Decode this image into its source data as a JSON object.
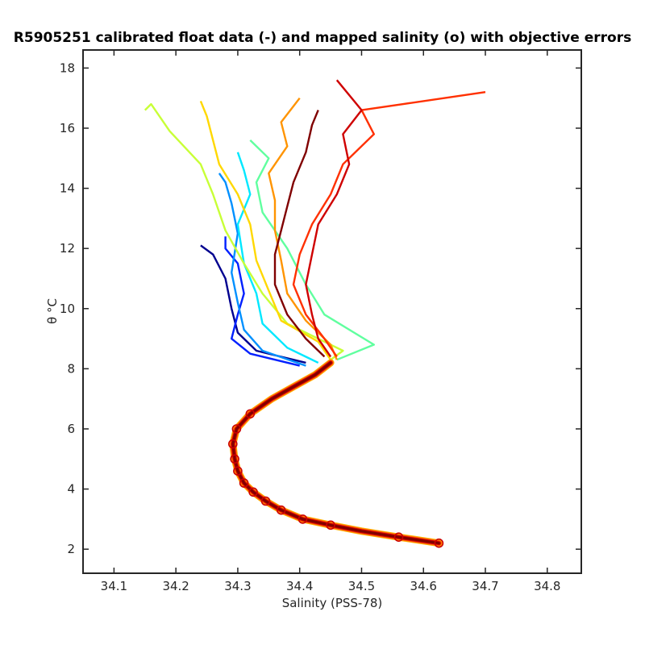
{
  "chart_data": {
    "type": "line",
    "title": "R5905251 calibrated float data (-) and mapped salinity (o) with objective errors",
    "xlabel": "Salinity (PSS-78)",
    "ylabel": "θ °C",
    "xlim": [
      34.05,
      34.855
    ],
    "ylim": [
      1.2,
      18.6
    ],
    "xticks": [
      "34.1",
      "34.2",
      "34.3",
      "34.4",
      "34.5",
      "34.6",
      "34.7",
      "34.8"
    ],
    "yticks": [
      "2",
      "4",
      "6",
      "8",
      "10",
      "12",
      "14",
      "16",
      "18"
    ],
    "grid": false,
    "colormap": "jet",
    "series_colors": [
      "#00008f",
      "#0020ff",
      "#0090ff",
      "#00e8ff",
      "#60ff9f",
      "#c8ff37",
      "#ffd800",
      "#ff9400",
      "#ff3000",
      "#cf0000",
      "#800000"
    ],
    "shared_deep_profile": {
      "theta": [
        2.2,
        2.4,
        2.6,
        2.8,
        3.0,
        3.3,
        3.6,
        3.9,
        4.2,
        4.6,
        5.0,
        5.5,
        6.0,
        6.5,
        7.0,
        7.4,
        7.8,
        8.2
      ],
      "salinity": [
        34.625,
        34.56,
        34.5,
        34.45,
        34.405,
        34.37,
        34.345,
        34.325,
        34.31,
        34.3,
        34.295,
        34.292,
        34.298,
        34.32,
        34.355,
        34.39,
        34.425,
        34.45
      ]
    },
    "upper_profiles": [
      {
        "theta": [
          8.2,
          8.6,
          9.2,
          10.0,
          11.0,
          11.8,
          12.1
        ],
        "salinity": [
          34.41,
          34.33,
          34.3,
          34.29,
          34.28,
          34.26,
          34.24
        ]
      },
      {
        "theta": [
          8.1,
          8.5,
          9.0,
          9.8,
          10.5,
          11.5,
          12.0,
          12.4
        ],
        "salinity": [
          34.4,
          34.32,
          34.29,
          34.3,
          34.31,
          34.3,
          34.28,
          34.28
        ]
      },
      {
        "theta": [
          8.1,
          8.6,
          9.3,
          10.2,
          11.2,
          12.5,
          13.5,
          14.2,
          14.5
        ],
        "salinity": [
          34.41,
          34.34,
          34.31,
          34.3,
          34.29,
          34.3,
          34.29,
          34.28,
          34.27
        ]
      },
      {
        "theta": [
          8.2,
          8.7,
          9.5,
          10.5,
          11.5,
          12.8,
          13.8,
          14.6,
          15.2
        ],
        "salinity": [
          34.43,
          34.38,
          34.34,
          34.33,
          34.31,
          34.3,
          34.32,
          34.31,
          34.3
        ]
      },
      {
        "theta": [
          8.3,
          8.8,
          9.8,
          10.8,
          12.0,
          13.2,
          14.2,
          15.0,
          15.6
        ],
        "salinity": [
          34.46,
          34.52,
          34.44,
          34.41,
          34.38,
          34.34,
          34.33,
          34.35,
          34.32
        ]
      },
      {
        "theta": [
          8.3,
          8.6,
          9.5,
          10.5,
          11.5,
          12.6,
          13.8,
          14.8,
          15.9,
          16.8,
          16.6
        ],
        "salinity": [
          34.45,
          34.47,
          34.38,
          34.34,
          34.31,
          34.28,
          34.26,
          34.24,
          34.19,
          34.16,
          34.15
        ]
      },
      {
        "theta": [
          8.3,
          8.9,
          9.6,
          10.6,
          11.6,
          12.8,
          13.8,
          14.8,
          15.6,
          16.4,
          16.9
        ],
        "salinity": [
          34.45,
          34.43,
          34.37,
          34.35,
          34.33,
          34.32,
          34.3,
          34.27,
          34.26,
          34.25,
          34.24
        ]
      },
      {
        "theta": [
          8.3,
          8.8,
          9.6,
          10.5,
          11.6,
          12.6,
          13.6,
          14.5,
          15.4,
          16.2,
          17.0
        ],
        "salinity": [
          34.46,
          34.45,
          34.41,
          34.38,
          34.37,
          34.36,
          34.36,
          34.35,
          34.38,
          34.37,
          34.4
        ]
      },
      {
        "theta": [
          8.4,
          9.0,
          9.8,
          10.8,
          11.8,
          12.8,
          13.8,
          14.8,
          15.8,
          16.6,
          17.2
        ],
        "salinity": [
          34.46,
          34.44,
          34.41,
          34.39,
          34.4,
          34.42,
          34.45,
          34.47,
          34.52,
          34.5,
          34.7
        ]
      },
      {
        "theta": [
          8.4,
          9.0,
          9.8,
          10.8,
          11.8,
          12.8,
          13.8,
          14.8,
          15.8,
          16.6,
          17.6
        ],
        "salinity": [
          34.45,
          34.43,
          34.42,
          34.41,
          34.42,
          34.43,
          34.46,
          34.48,
          34.47,
          34.5,
          34.46
        ]
      },
      {
        "theta": [
          8.4,
          9.0,
          9.8,
          10.8,
          11.8,
          12.6,
          13.4,
          14.2,
          15.2,
          16.1,
          16.6
        ],
        "salinity": [
          34.44,
          34.41,
          34.38,
          34.36,
          34.36,
          34.37,
          34.38,
          34.39,
          34.41,
          34.42,
          34.43
        ]
      }
    ],
    "mapped_points": [
      {
        "theta": 2.2,
        "salinity": 34.625
      },
      {
        "theta": 2.4,
        "salinity": 34.56
      },
      {
        "theta": 2.8,
        "salinity": 34.45
      },
      {
        "theta": 3.0,
        "salinity": 34.405
      },
      {
        "theta": 3.3,
        "salinity": 34.37
      },
      {
        "theta": 3.6,
        "salinity": 34.345
      },
      {
        "theta": 3.9,
        "salinity": 34.325
      },
      {
        "theta": 4.2,
        "salinity": 34.31
      },
      {
        "theta": 4.6,
        "salinity": 34.3
      },
      {
        "theta": 5.0,
        "salinity": 34.295
      },
      {
        "theta": 5.5,
        "salinity": 34.292
      },
      {
        "theta": 6.0,
        "salinity": 34.298
      },
      {
        "theta": 6.5,
        "salinity": 34.32
      }
    ]
  }
}
